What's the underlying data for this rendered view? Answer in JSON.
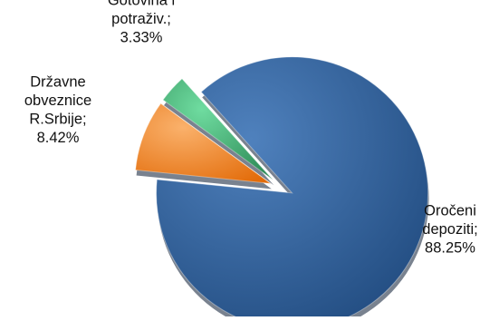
{
  "chart_data": {
    "type": "pie",
    "title": "",
    "start_angle_deg": 132,
    "direction": "clockwise",
    "explode_all": true,
    "slices": [
      {
        "label": "Oročeni depoziti",
        "value": 88.25,
        "display_lines": [
          "Oročeni",
          "depoziti;",
          "88.25%"
        ],
        "color": "#1f497d",
        "highlight": "#4f81bd"
      },
      {
        "label": "Državne obveznice R.Srbije",
        "value": 8.42,
        "display_lines": [
          "Državne",
          "obveznice",
          "R.Srbije;",
          "8.42%"
        ],
        "color": "#e36c0a",
        "highlight": "#fab16b"
      },
      {
        "label": "Gotovina i potraživ.",
        "value": 3.33,
        "display_lines": [
          "Gotovina i",
          "potraživ.;",
          "3.33%"
        ],
        "color": "#2e8b57",
        "highlight": "#6fdca0"
      }
    ]
  }
}
